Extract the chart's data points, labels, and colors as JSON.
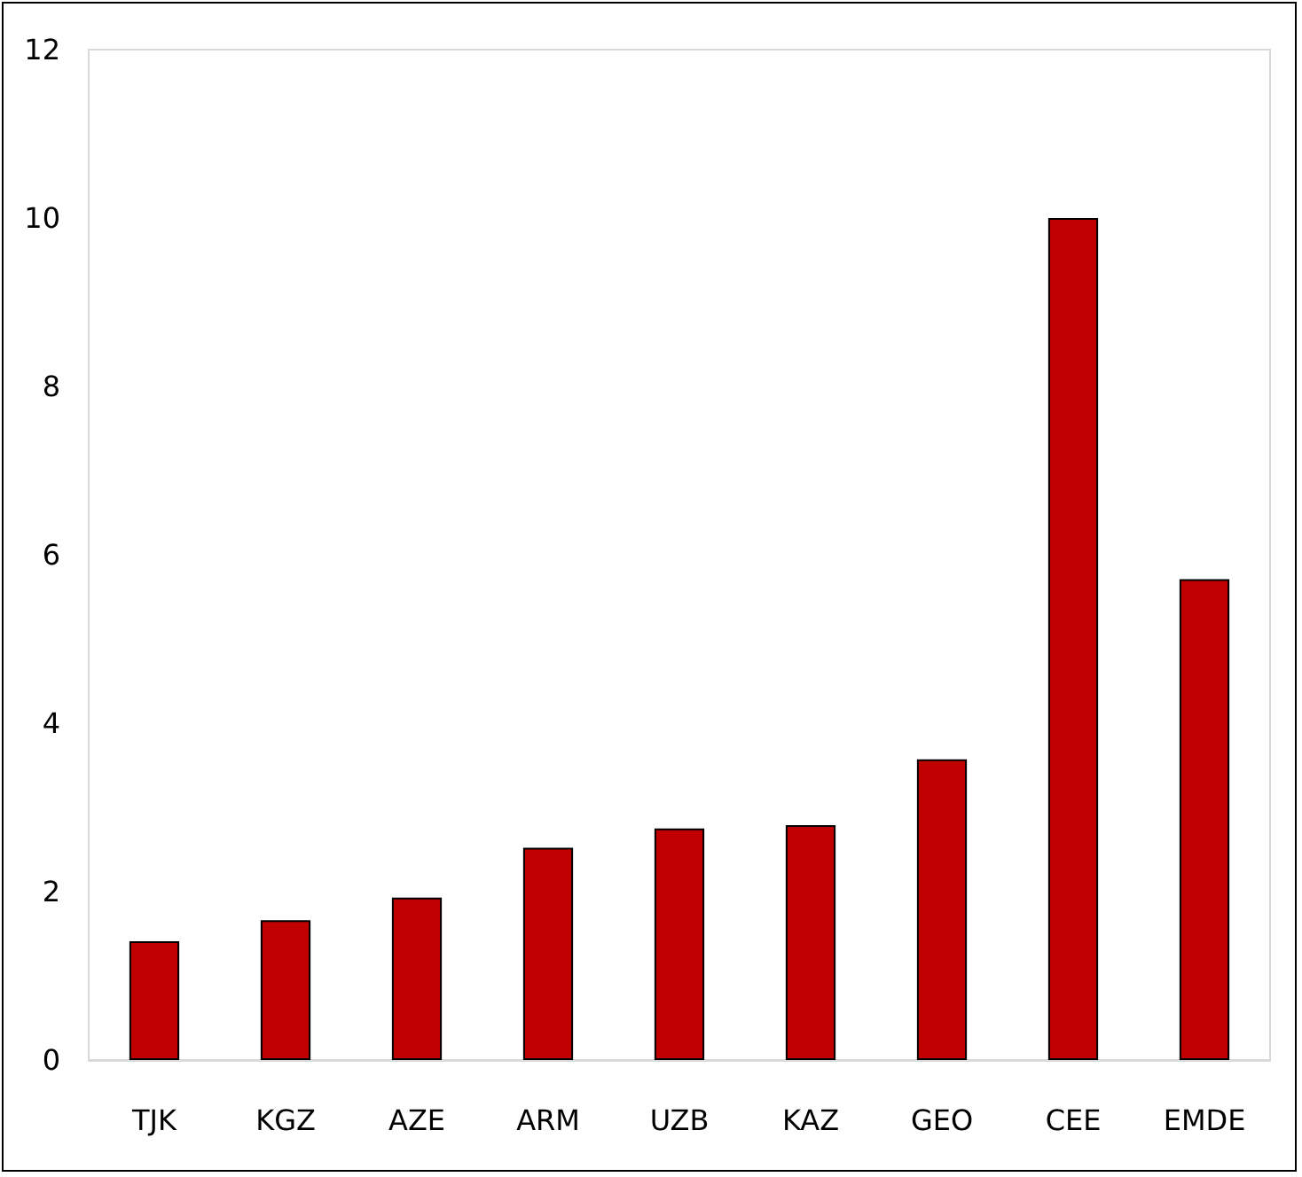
{
  "chart_data": {
    "type": "bar",
    "categories": [
      "TJK",
      "KGZ",
      "AZE",
      "ARM",
      "UZB",
      "KAZ",
      "GEO",
      "CEE",
      "EMDE"
    ],
    "values": [
      1.41,
      1.66,
      1.93,
      2.52,
      2.75,
      2.79,
      3.57,
      10.0,
      5.71
    ],
    "color": "#c00000",
    "ylim": [
      0,
      12
    ],
    "yticks": [
      0,
      2,
      4,
      6,
      8,
      10,
      12
    ],
    "grid": false
  }
}
